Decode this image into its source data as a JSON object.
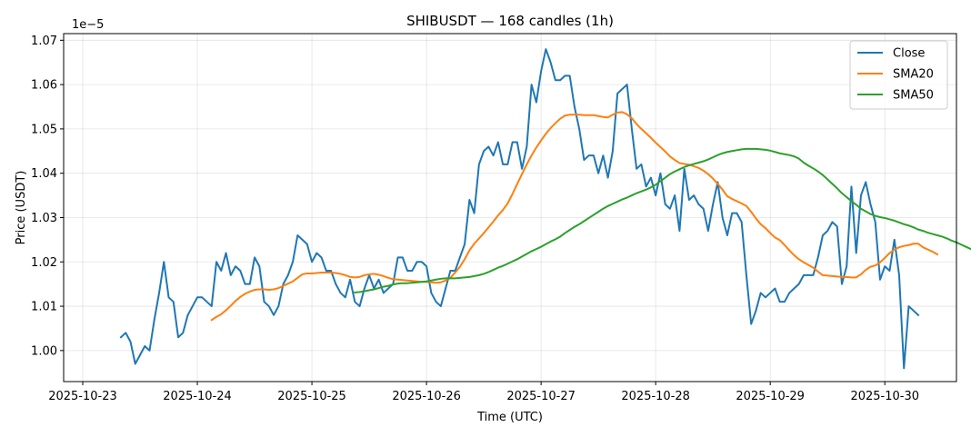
{
  "chart_data": {
    "type": "line",
    "title": "SHIBUSDT — 168 candles (1h)",
    "xlabel": "Time (UTC)",
    "ylabel": "Price (USDT)",
    "y_offset_label": "1e−5",
    "ylim": [
      0.993,
      1.0715
    ],
    "yticks": [
      1.0,
      1.01,
      1.02,
      1.03,
      1.04,
      1.05,
      1.06,
      1.07
    ],
    "ytick_labels": [
      "1.00",
      "1.01",
      "1.02",
      "1.03",
      "1.04",
      "1.05",
      "1.06",
      "1.07"
    ],
    "xlim": [
      "2025-10-22T20:00",
      "2025-10-30T15:00"
    ],
    "xticks": [
      "2025-10-23",
      "2025-10-24",
      "2025-10-25",
      "2025-10-26",
      "2025-10-27",
      "2025-10-28",
      "2025-10-29",
      "2025-10-30"
    ],
    "grid": true,
    "legend_position": "top-right",
    "x_start": "2025-10-23T08:00",
    "x_step_hours": 1,
    "series": [
      {
        "name": "Close",
        "color": "#1f77b4",
        "values": [
          1.003,
          1.004,
          1.002,
          0.997,
          0.999,
          1.001,
          1.0,
          1.007,
          1.013,
          1.02,
          1.012,
          1.011,
          1.003,
          1.004,
          1.008,
          1.01,
          1.012,
          1.012,
          1.011,
          1.01,
          1.02,
          1.018,
          1.022,
          1.017,
          1.019,
          1.018,
          1.015,
          1.015,
          1.021,
          1.019,
          1.011,
          1.01,
          1.008,
          1.01,
          1.015,
          1.017,
          1.02,
          1.026,
          1.025,
          1.024,
          1.02,
          1.022,
          1.021,
          1.018,
          1.018,
          1.015,
          1.013,
          1.012,
          1.016,
          1.011,
          1.01,
          1.014,
          1.017,
          1.014,
          1.016,
          1.013,
          1.014,
          1.015,
          1.021,
          1.021,
          1.018,
          1.018,
          1.02,
          1.02,
          1.019,
          1.013,
          1.011,
          1.01,
          1.014,
          1.018,
          1.018,
          1.021,
          1.024,
          1.034,
          1.031,
          1.042,
          1.045,
          1.046,
          1.044,
          1.047,
          1.042,
          1.042,
          1.047,
          1.047,
          1.041,
          1.046,
          1.06,
          1.056,
          1.063,
          1.068,
          1.065,
          1.061,
          1.061,
          1.062,
          1.062,
          1.055,
          1.05,
          1.043,
          1.044,
          1.044,
          1.04,
          1.044,
          1.039,
          1.045,
          1.058,
          1.059,
          1.06,
          1.05,
          1.041,
          1.042,
          1.037,
          1.039,
          1.035,
          1.04,
          1.033,
          1.032,
          1.035,
          1.027,
          1.041,
          1.034,
          1.035,
          1.033,
          1.032,
          1.027,
          1.033,
          1.038,
          1.03,
          1.026,
          1.031,
          1.031,
          1.029,
          1.017,
          1.006,
          1.009,
          1.013,
          1.012,
          1.013,
          1.014,
          1.011,
          1.011,
          1.013,
          1.014,
          1.015,
          1.017,
          1.017,
          1.017,
          1.021,
          1.026,
          1.027,
          1.029,
          1.028,
          1.015,
          1.019,
          1.037,
          1.022,
          1.035,
          1.038,
          1.033,
          1.029,
          1.016,
          1.019,
          1.018,
          1.025,
          1.017,
          0.996,
          1.01,
          1.009,
          1.008
        ]
      },
      {
        "name": "SMA20",
        "color": "#ff7f0e",
        "start_index": 19,
        "values": [
          1.0069,
          1.0076,
          1.0082,
          1.0091,
          1.0101,
          1.0112,
          1.0121,
          1.0128,
          1.0133,
          1.0137,
          1.0138,
          1.0138,
          1.0137,
          1.0138,
          1.0141,
          1.0146,
          1.0151,
          1.0156,
          1.0164,
          1.0172,
          1.0174,
          1.0174,
          1.0175,
          1.0176,
          1.0176,
          1.0176,
          1.0175,
          1.0173,
          1.017,
          1.0166,
          1.0165,
          1.0166,
          1.017,
          1.0172,
          1.0173,
          1.0171,
          1.0168,
          1.0164,
          1.0161,
          1.016,
          1.0159,
          1.0158,
          1.0157,
          1.0156,
          1.0155,
          1.0155,
          1.0154,
          1.0153,
          1.0154,
          1.0158,
          1.0164,
          1.0176,
          1.0189,
          1.0206,
          1.0226,
          1.0241,
          1.0253,
          1.0265,
          1.0278,
          1.0291,
          1.0305,
          1.0317,
          1.0332,
          1.0353,
          1.0376,
          1.0398,
          1.042,
          1.044,
          1.0458,
          1.0474,
          1.0489,
          1.0502,
          1.0513,
          1.0523,
          1.053,
          1.0532,
          1.0532,
          1.0532,
          1.0531,
          1.0531,
          1.0531,
          1.0529,
          1.0527,
          1.0526,
          1.0532,
          1.0537,
          1.0538,
          1.0533,
          1.0524,
          1.0511,
          1.05,
          1.049,
          1.048,
          1.0469,
          1.0459,
          1.0449,
          1.0438,
          1.043,
          1.0423,
          1.0421,
          1.0419,
          1.0416,
          1.0412,
          1.0406,
          1.0398,
          1.0388,
          1.0376,
          1.0363,
          1.0348,
          1.0342,
          1.0337,
          1.0332,
          1.0326,
          1.0313,
          1.0298,
          1.0285,
          1.0276,
          1.0265,
          1.0255,
          1.0249,
          1.0238,
          1.0226,
          1.0215,
          1.0206,
          1.0199,
          1.0193,
          1.0187,
          1.0178,
          1.017,
          1.0169,
          1.0168,
          1.0167,
          1.0166,
          1.0166,
          1.0165,
          1.0165,
          1.0172,
          1.0182,
          1.0189,
          1.0192,
          1.0199,
          1.0209,
          1.022,
          1.0228,
          1.0233,
          1.0236,
          1.0238,
          1.0241,
          1.0241,
          1.0233,
          1.0228,
          1.0223,
          1.0217
        ]
      },
      {
        "name": "SMA50",
        "color": "#2ca02c",
        "start_index": 49,
        "values": [
          1.0131,
          1.0132,
          1.0134,
          1.0136,
          1.0138,
          1.0141,
          1.0144,
          1.0146,
          1.0149,
          1.0151,
          1.0152,
          1.0152,
          1.0153,
          1.0154,
          1.0155,
          1.0156,
          1.0158,
          1.016,
          1.0162,
          1.0163,
          1.0163,
          1.0163,
          1.0164,
          1.0165,
          1.0166,
          1.0168,
          1.017,
          1.0173,
          1.0177,
          1.0182,
          1.0187,
          1.0191,
          1.0196,
          1.0201,
          1.0206,
          1.0212,
          1.0218,
          1.0224,
          1.0229,
          1.0234,
          1.024,
          1.0246,
          1.0251,
          1.0257,
          1.0265,
          1.0272,
          1.0279,
          1.0285,
          1.0292,
          1.0299,
          1.0306,
          1.0313,
          1.032,
          1.0326,
          1.0331,
          1.0336,
          1.0341,
          1.0345,
          1.035,
          1.0355,
          1.0359,
          1.0363,
          1.0368,
          1.0374,
          1.0382,
          1.039,
          1.0398,
          1.0404,
          1.0409,
          1.0414,
          1.0418,
          1.0421,
          1.0424,
          1.0427,
          1.0431,
          1.0436,
          1.0441,
          1.0445,
          1.0448,
          1.045,
          1.0452,
          1.0454,
          1.0455,
          1.0455,
          1.0455,
          1.0454,
          1.0453,
          1.0451,
          1.0448,
          1.0445,
          1.0443,
          1.0441,
          1.0438,
          1.0433,
          1.0424,
          1.0417,
          1.0411,
          1.0404,
          1.0396,
          1.0386,
          1.0376,
          1.0366,
          1.0355,
          1.0346,
          1.0337,
          1.0329,
          1.032,
          1.0314,
          1.0308,
          1.0304,
          1.0301,
          1.0299,
          1.0296,
          1.0293,
          1.0289,
          1.0285,
          1.0282,
          1.0278,
          1.0273,
          1.027,
          1.0266,
          1.0263,
          1.026,
          1.0257,
          1.0253,
          1.0248,
          1.0244,
          1.0239,
          1.0234,
          1.0229,
          1.0224,
          1.0219,
          1.0216,
          1.0214,
          1.0214,
          1.0214
        ]
      }
    ]
  }
}
